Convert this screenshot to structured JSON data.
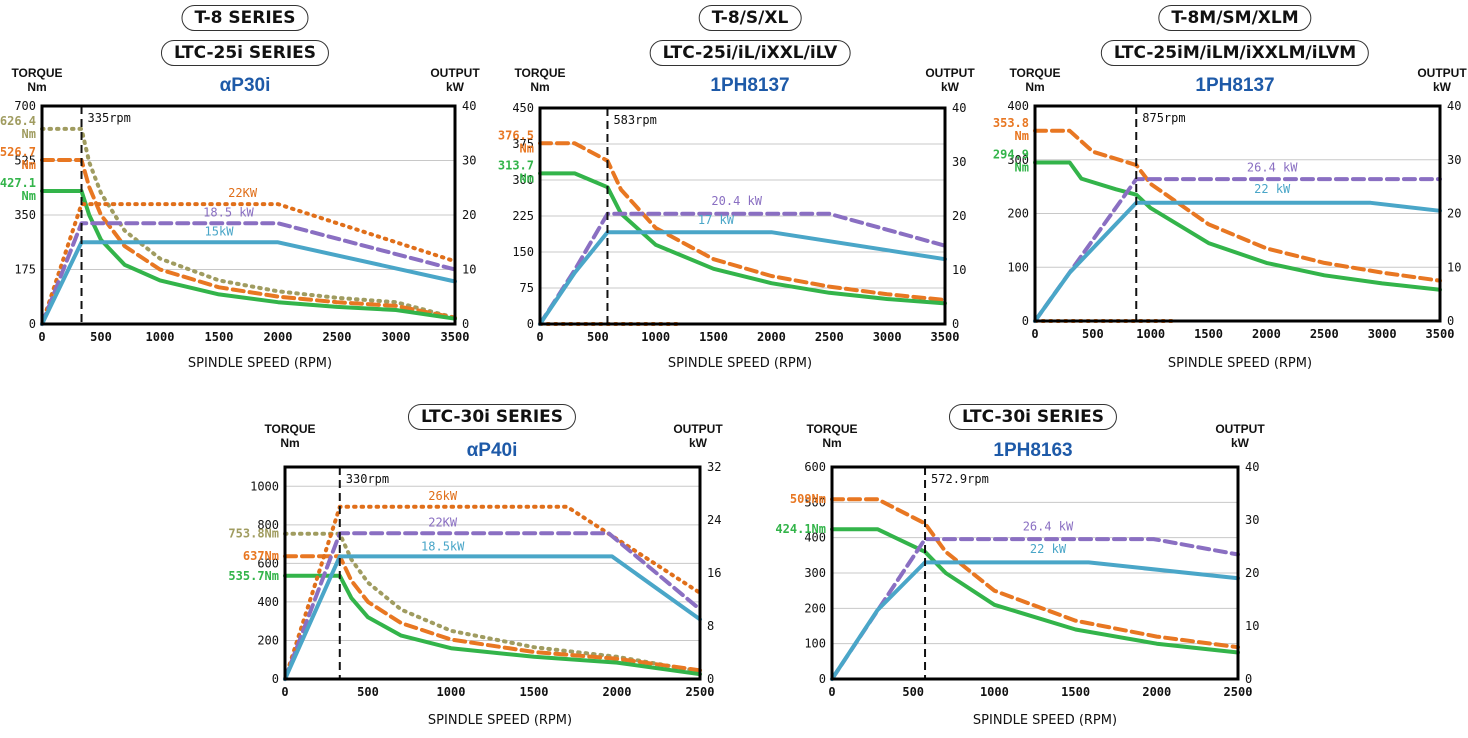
{
  "colors": {
    "torque_a": "#e87722",
    "torque_b": "#33b44a",
    "power_a": "#8a6fc2",
    "power_b": "#4aa6c8",
    "dotted_olive": "#a09c60",
    "dotted_orange": "#e06f1a",
    "series_title": "#1e5aa8"
  },
  "chart_data": [
    {
      "type": "line",
      "header_lines": [
        "T-8 SERIES",
        "LTC-25i SERIES"
      ],
      "motor": "αP30i",
      "left_axis_title": [
        "TORQUE",
        "Nm"
      ],
      "right_axis_title": [
        "OUTPUT",
        "kW"
      ],
      "xlabel": "SPINDLE SPEED (RPM)",
      "xlim": [
        0,
        3500
      ],
      "xticks": [
        0,
        500,
        1000,
        1500,
        2000,
        2500,
        3000,
        3500
      ],
      "ylim_left": [
        0,
        700
      ],
      "yticks_left": [
        0,
        175,
        350,
        525,
        700
      ],
      "ylim_right": [
        0,
        40
      ],
      "yticks_right": [
        0,
        10,
        20,
        30,
        40
      ],
      "grid": true,
      "vline": {
        "x": 335,
        "label": "335rpm"
      },
      "side_labels": [
        {
          "text": [
            "626.4",
            "Nm"
          ],
          "y": 626.4,
          "color": "#a09c60"
        },
        {
          "text": [
            "526.7",
            "Nm"
          ],
          "y": 526.7,
          "color": "#e87722"
        },
        {
          "text": [
            "427.1",
            "Nm"
          ],
          "y": 427.1,
          "color": "#33b44a"
        }
      ],
      "series": [
        {
          "style": "dotted",
          "axis": "left",
          "color": "#a09c60",
          "x": [
            0,
            210,
            335,
            400,
            500,
            700,
            1000,
            1500,
            2000,
            2500,
            3000,
            3500
          ],
          "y": [
            626.4,
            626.4,
            626.4,
            520,
            420,
            300,
            210,
            140,
            105,
            84,
            70,
            20
          ]
        },
        {
          "style": "dashed",
          "axis": "left",
          "color": "#e87722",
          "x": [
            0,
            210,
            335,
            400,
            500,
            700,
            1000,
            1500,
            2000,
            2500,
            3000,
            3500
          ],
          "y": [
            526.7,
            526.7,
            526.7,
            440,
            350,
            250,
            175,
            118,
            88,
            70,
            58,
            20
          ]
        },
        {
          "style": "solid",
          "axis": "left",
          "color": "#33b44a",
          "x": [
            0,
            210,
            335,
            400,
            500,
            700,
            1000,
            1500,
            2000,
            2500,
            3000,
            3500
          ],
          "y": [
            427.1,
            427.1,
            427.1,
            350,
            270,
            190,
            140,
            95,
            70,
            55,
            45,
            17
          ]
        },
        {
          "style": "dotted",
          "axis": "right",
          "color": "#e06f1a",
          "x": [
            0,
            335,
            2000,
            3500
          ],
          "y": [
            0,
            22,
            22,
            11.5
          ]
        },
        {
          "style": "dashed",
          "axis": "right",
          "color": "#8a6fc2",
          "x": [
            0,
            335,
            2000,
            3500
          ],
          "y": [
            0,
            18.5,
            18.5,
            10
          ]
        },
        {
          "style": "solid",
          "axis": "right",
          "color": "#4aa6c8",
          "x": [
            0,
            335,
            2000,
            3500
          ],
          "y": [
            0,
            15,
            15,
            7.8
          ]
        }
      ],
      "annotations": [
        {
          "text": "22KW",
          "x": 1700,
          "y": 23.3,
          "axis": "right",
          "color": "#e06f1a"
        },
        {
          "text": "18.5 kW",
          "x": 1580,
          "y": 19.7,
          "axis": "right",
          "color": "#8a6fc2"
        },
        {
          "text": "15kW",
          "x": 1500,
          "y": 16.2,
          "axis": "right",
          "color": "#4aa6c8"
        }
      ]
    },
    {
      "type": "line",
      "header_lines": [
        "T-8/S/XL",
        "LTC-25i/iL/iXXL/iLV"
      ],
      "motor": "1PH8137",
      "left_axis_title": [
        "TORQUE",
        "Nm"
      ],
      "right_axis_title": [
        "OUTPUT",
        "kW"
      ],
      "xlabel": "SPINDLE SPEED (RPM)",
      "xlim": [
        0,
        3500
      ],
      "xticks": [
        0,
        500,
        1000,
        1500,
        2000,
        2500,
        3000,
        3500
      ],
      "ylim_left": [
        0,
        450
      ],
      "yticks_left": [
        0,
        75,
        150,
        225,
        300,
        375,
        450
      ],
      "ylim_right": [
        0,
        40
      ],
      "yticks_right": [
        0,
        10,
        20,
        30,
        40
      ],
      "grid": true,
      "vline": {
        "x": 583,
        "label": "583rpm"
      },
      "side_labels": [
        {
          "text": [
            "376.5",
            "Nm"
          ],
          "y": 376.5,
          "color": "#e87722"
        },
        {
          "text": [
            "313.7",
            "Nm"
          ],
          "y": 313.7,
          "color": "#33b44a"
        }
      ],
      "series": [
        {
          "style": "dotted",
          "axis": "left",
          "color": "#e06f1a",
          "x": [
            0,
            1200
          ],
          "y": [
            0,
            0
          ]
        },
        {
          "style": "dashed",
          "axis": "left",
          "color": "#e87722",
          "x": [
            0,
            300,
            583,
            700,
            1000,
            1500,
            2000,
            2500,
            3000,
            3500
          ],
          "y": [
            376.5,
            376.5,
            340,
            280,
            200,
            135,
            100,
            78,
            62,
            50
          ]
        },
        {
          "style": "solid",
          "axis": "left",
          "color": "#33b44a",
          "x": [
            0,
            300,
            583,
            700,
            1000,
            1500,
            2000,
            2500,
            3000,
            3500
          ],
          "y": [
            313.7,
            313.7,
            285,
            230,
            165,
            115,
            85,
            65,
            52,
            43
          ]
        },
        {
          "style": "dashed",
          "axis": "right",
          "color": "#8a6fc2",
          "x": [
            0,
            300,
            583,
            2500,
            3500
          ],
          "y": [
            0,
            10,
            20.4,
            20.4,
            14.5
          ]
        },
        {
          "style": "solid",
          "axis": "right",
          "color": "#4aa6c8",
          "x": [
            0,
            300,
            583,
            2000,
            3500
          ],
          "y": [
            0,
            9.5,
            17,
            17,
            12
          ]
        }
      ],
      "annotations": [
        {
          "text": "20.4 kW",
          "x": 1700,
          "y": 22,
          "axis": "right",
          "color": "#8a6fc2"
        },
        {
          "text": "17 kW",
          "x": 1520,
          "y": 18.5,
          "axis": "right",
          "color": "#4aa6c8"
        }
      ]
    },
    {
      "type": "line",
      "header_lines": [
        "T-8M/SM/XLM",
        "LTC-25iM/iLM/iXXLM/iLVM"
      ],
      "motor": "1PH8137",
      "left_axis_title": [
        "TORQUE",
        "Nm"
      ],
      "right_axis_title": [
        "OUTPUT",
        "kW"
      ],
      "xlabel": "SPINDLE SPEED (RPM)",
      "xlim": [
        0,
        3500
      ],
      "xticks": [
        0,
        500,
        1000,
        1500,
        2000,
        2500,
        3000,
        3500
      ],
      "ylim_left": [
        0,
        400
      ],
      "yticks_left": [
        0,
        100,
        200,
        300,
        400
      ],
      "ylim_right": [
        0,
        40
      ],
      "yticks_right": [
        0,
        10,
        20,
        30,
        40
      ],
      "grid": true,
      "vline": {
        "x": 875,
        "label": "875rpm"
      },
      "side_labels": [
        {
          "text": [
            "353.8",
            "Nm"
          ],
          "y": 353.8,
          "color": "#e87722"
        },
        {
          "text": [
            "294.9",
            "Nm"
          ],
          "y": 294.9,
          "color": "#33b44a"
        }
      ],
      "series": [
        {
          "style": "dotted",
          "axis": "left",
          "color": "#e06f1a",
          "x": [
            0,
            1200
          ],
          "y": [
            0,
            0
          ]
        },
        {
          "style": "dashed",
          "axis": "left",
          "color": "#e87722",
          "x": [
            0,
            300,
            500,
            875,
            1000,
            1500,
            2000,
            2500,
            3000,
            3500
          ],
          "y": [
            353.8,
            353.8,
            315,
            290,
            255,
            180,
            135,
            108,
            90,
            75
          ]
        },
        {
          "style": "solid",
          "axis": "left",
          "color": "#33b44a",
          "x": [
            0,
            300,
            400,
            700,
            875,
            1000,
            1500,
            2000,
            2500,
            3000,
            3500
          ],
          "y": [
            294.9,
            294.9,
            265,
            245,
            235,
            210,
            145,
            108,
            85,
            70,
            58
          ]
        },
        {
          "style": "dashed",
          "axis": "right",
          "color": "#8a6fc2",
          "x": [
            0,
            875,
            3500
          ],
          "y": [
            0,
            26.4,
            26.4
          ]
        },
        {
          "style": "solid",
          "axis": "right",
          "color": "#4aa6c8",
          "x": [
            0,
            300,
            875,
            2900,
            3500
          ],
          "y": [
            0,
            9,
            22,
            22,
            20.5
          ]
        }
      ],
      "annotations": [
        {
          "text": "26.4 kW",
          "x": 2050,
          "y": 27.8,
          "axis": "right",
          "color": "#8a6fc2"
        },
        {
          "text": "22 kW",
          "x": 2050,
          "y": 23.8,
          "axis": "right",
          "color": "#4aa6c8"
        }
      ]
    },
    {
      "type": "line",
      "header_lines": [
        "LTC-30i SERIES"
      ],
      "motor": "αP40i",
      "left_axis_title": [
        "TORQUE",
        "Nm"
      ],
      "right_axis_title": [
        "OUTPUT",
        "kW"
      ],
      "xlabel": "SPINDLE SPEED (RPM)",
      "xlim": [
        0,
        2500
      ],
      "xticks": [
        0,
        500,
        1000,
        1500,
        2000,
        2500
      ],
      "ylim_left": [
        0,
        1100
      ],
      "yticks_left": [
        0,
        200,
        400,
        600,
        800,
        1000
      ],
      "ylim_right": [
        0,
        32
      ],
      "yticks_right": [
        0,
        8,
        16,
        24,
        32
      ],
      "grid": true,
      "vline": {
        "x": 330,
        "label": "330rpm"
      },
      "side_labels": [
        {
          "text": [
            "753.8Nm"
          ],
          "y": 753.8,
          "color": "#a09c60"
        },
        {
          "text": [
            "637Nm"
          ],
          "y": 637,
          "color": "#e87722"
        },
        {
          "text": [
            "535.7Nm"
          ],
          "y": 535.7,
          "color": "#33b44a"
        }
      ],
      "series": [
        {
          "style": "dotted",
          "axis": "left",
          "color": "#a09c60",
          "x": [
            0,
            300,
            330,
            400,
            500,
            700,
            1000,
            1500,
            2000,
            2500
          ],
          "y": [
            753.8,
            753.8,
            753.8,
            620,
            500,
            360,
            250,
            165,
            115,
            40
          ]
        },
        {
          "style": "dashed",
          "axis": "left",
          "color": "#e87722",
          "x": [
            0,
            300,
            330,
            400,
            500,
            700,
            1000,
            1500,
            2000,
            2500
          ],
          "y": [
            637,
            637,
            637,
            510,
            400,
            290,
            205,
            140,
            105,
            45
          ]
        },
        {
          "style": "solid",
          "axis": "left",
          "color": "#33b44a",
          "x": [
            0,
            300,
            330,
            400,
            500,
            700,
            1000,
            1500,
            2000,
            2500
          ],
          "y": [
            535.7,
            535.7,
            535.7,
            420,
            320,
            225,
            160,
            115,
            85,
            25
          ]
        },
        {
          "style": "dotted",
          "axis": "right",
          "color": "#e06f1a",
          "x": [
            0,
            330,
            1700,
            2500
          ],
          "y": [
            0,
            26,
            26,
            13
          ]
        },
        {
          "style": "dashed",
          "axis": "right",
          "color": "#8a6fc2",
          "x": [
            0,
            330,
            1950,
            2500
          ],
          "y": [
            0,
            22,
            22,
            10.5
          ]
        },
        {
          "style": "solid",
          "axis": "right",
          "color": "#4aa6c8",
          "x": [
            0,
            330,
            1970,
            2500
          ],
          "y": [
            0,
            18.5,
            18.5,
            9
          ]
        }
      ],
      "annotations": [
        {
          "text": "26kW",
          "x": 950,
          "y": 27,
          "axis": "right",
          "color": "#e06f1a"
        },
        {
          "text": "22KW",
          "x": 950,
          "y": 23,
          "axis": "right",
          "color": "#8a6fc2"
        },
        {
          "text": "18.5kW",
          "x": 950,
          "y": 19.4,
          "axis": "right",
          "color": "#4aa6c8"
        }
      ]
    },
    {
      "type": "line",
      "header_lines": [
        "LTC-30i SERIES"
      ],
      "motor": "1PH8163",
      "left_axis_title": [
        "TORQUE",
        "Nm"
      ],
      "right_axis_title": [
        "OUTPUT",
        "kW"
      ],
      "xlabel": "SPINDLE SPEED (RPM)",
      "xlim": [
        0,
        2500
      ],
      "xticks": [
        0,
        500,
        1000,
        1500,
        2000,
        2500
      ],
      "ylim_left": [
        0,
        600
      ],
      "yticks_left": [
        0,
        100,
        200,
        300,
        400,
        500,
        600
      ],
      "ylim_right": [
        0,
        40
      ],
      "yticks_right": [
        0,
        10,
        20,
        30,
        40
      ],
      "grid": true,
      "vline": {
        "x": 572.9,
        "label": "572.9rpm"
      },
      "side_labels": [
        {
          "text": [
            "509Nm"
          ],
          "y": 509,
          "color": "#e87722"
        },
        {
          "text": [
            "424.1Nm"
          ],
          "y": 424.1,
          "color": "#33b44a"
        }
      ],
      "series": [
        {
          "style": "dashed",
          "axis": "left",
          "color": "#e87722",
          "x": [
            0,
            280,
            572.9,
            700,
            1000,
            1500,
            2000,
            2500
          ],
          "y": [
            509,
            509,
            440,
            360,
            250,
            165,
            120,
            90
          ]
        },
        {
          "style": "solid",
          "axis": "left",
          "color": "#33b44a",
          "x": [
            0,
            280,
            572.9,
            700,
            1000,
            1500,
            2000,
            2500
          ],
          "y": [
            424.1,
            424.1,
            360,
            300,
            210,
            140,
            100,
            75
          ]
        },
        {
          "style": "dashed",
          "axis": "right",
          "color": "#8a6fc2",
          "x": [
            0,
            572.9,
            1980,
            2500
          ],
          "y": [
            0,
            26.4,
            26.4,
            23.5
          ]
        },
        {
          "style": "solid",
          "axis": "right",
          "color": "#4aa6c8",
          "x": [
            0,
            280,
            572.9,
            1580,
            2500
          ],
          "y": [
            0,
            13,
            22,
            22,
            19
          ]
        }
      ],
      "annotations": [
        {
          "text": "26.4 kW",
          "x": 1330,
          "y": 28,
          "axis": "right",
          "color": "#8a6fc2"
        },
        {
          "text": "22 kW",
          "x": 1330,
          "y": 23.8,
          "axis": "right",
          "color": "#4aa6c8"
        }
      ]
    }
  ]
}
